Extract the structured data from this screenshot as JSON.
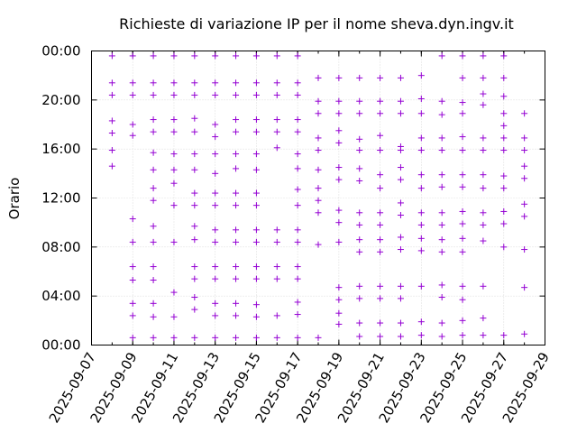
{
  "chart_data": {
    "type": "scatter",
    "title": "Richieste di variazione IP per il nome sheva.dyn.ingv.it",
    "xlabel": "",
    "ylabel": "Orario",
    "x_ticks": [
      "2025-09-07",
      "2025-09-09",
      "2025-09-11",
      "2025-09-13",
      "2025-09-15",
      "2025-09-17",
      "2025-09-19",
      "2025-09-21",
      "2025-09-23",
      "2025-09-25",
      "2025-09-27",
      "2025-09-29"
    ],
    "y_ticks": [
      "00:00",
      "04:00",
      "08:00",
      "12:00",
      "16:00",
      "20:00",
      "00:00"
    ],
    "xlim": [
      "2025-09-07",
      "2025-09-29"
    ],
    "ylim": [
      0,
      24
    ],
    "grid": true,
    "marker": "+",
    "color": "#9400d3",
    "series": [
      {
        "points": [
          {
            "date": "2025-09-08",
            "hours": [
              23.6,
              21.4,
              20.4,
              18.3,
              17.3,
              15.9,
              14.6
            ]
          },
          {
            "date": "2025-09-09",
            "hours": [
              23.6,
              21.4,
              20.4,
              18.0,
              17.1,
              10.3,
              8.4,
              6.4,
              5.3,
              3.4,
              2.4,
              0.6
            ]
          },
          {
            "date": "2025-09-10",
            "hours": [
              23.6,
              21.4,
              20.4,
              18.4,
              17.4,
              15.7,
              14.3,
              12.8,
              11.8,
              9.7,
              8.4,
              6.4,
              5.3,
              3.4,
              2.3,
              0.6
            ]
          },
          {
            "date": "2025-09-11",
            "hours": [
              23.6,
              21.4,
              20.4,
              18.4,
              17.4,
              15.6,
              14.3,
              13.2,
              11.4,
              8.4,
              4.3,
              2.3,
              0.6
            ]
          },
          {
            "date": "2025-09-12",
            "hours": [
              23.6,
              21.4,
              20.4,
              18.5,
              17.4,
              15.6,
              14.3,
              12.4,
              11.4,
              9.7,
              8.6,
              6.4,
              5.4,
              3.9,
              2.9,
              0.6
            ]
          },
          {
            "date": "2025-09-13",
            "hours": [
              23.6,
              21.4,
              20.4,
              18.0,
              17.0,
              15.6,
              14.0,
              12.4,
              11.4,
              9.4,
              8.4,
              6.4,
              5.4,
              3.4,
              2.4,
              0.6
            ]
          },
          {
            "date": "2025-09-14",
            "hours": [
              23.6,
              21.4,
              20.4,
              18.4,
              17.4,
              15.6,
              14.4,
              12.4,
              11.4,
              9.4,
              8.4,
              6.4,
              5.4,
              3.4,
              2.4,
              0.6
            ]
          },
          {
            "date": "2025-09-15",
            "hours": [
              23.6,
              21.4,
              20.4,
              18.4,
              17.4,
              15.6,
              14.3,
              12.4,
              11.4,
              9.4,
              8.4,
              6.4,
              5.4,
              3.3,
              2.3,
              0.6
            ]
          },
          {
            "date": "2025-09-16",
            "hours": [
              23.6,
              21.4,
              20.4,
              18.4,
              17.4,
              16.1,
              9.4,
              8.4,
              6.4,
              5.4,
              2.4,
              0.6
            ]
          },
          {
            "date": "2025-09-17",
            "hours": [
              23.6,
              21.4,
              20.4,
              18.4,
              17.4,
              15.6,
              14.4,
              12.7,
              11.4,
              9.4,
              8.4,
              6.4,
              5.4,
              3.5,
              2.5,
              0.6
            ]
          },
          {
            "date": "2025-09-18",
            "hours": [
              21.8,
              19.9,
              18.9,
              16.9,
              15.9,
              14.3,
              12.8,
              11.8,
              10.8,
              8.2,
              0.6
            ]
          },
          {
            "date": "2025-09-19",
            "hours": [
              21.8,
              19.9,
              18.9,
              17.5,
              16.5,
              14.5,
              13.5,
              11.0,
              10.0,
              8.4,
              4.7,
              3.7,
              2.6,
              1.7
            ]
          },
          {
            "date": "2025-09-20",
            "hours": [
              21.8,
              19.9,
              18.9,
              16.8,
              15.9,
              14.4,
              13.4,
              10.8,
              9.8,
              8.6,
              7.6,
              4.8,
              3.8,
              1.8,
              0.7
            ]
          },
          {
            "date": "2025-09-21",
            "hours": [
              21.8,
              19.9,
              18.9,
              17.1,
              15.9,
              13.9,
              12.8,
              10.8,
              9.8,
              8.6,
              7.6,
              4.8,
              3.8,
              1.8,
              0.7
            ]
          },
          {
            "date": "2025-09-22",
            "hours": [
              21.8,
              19.9,
              18.9,
              16.2,
              15.9,
              14.5,
              13.5,
              11.6,
              10.6,
              8.8,
              7.8,
              4.8,
              3.8,
              1.8,
              0.7
            ]
          },
          {
            "date": "2025-09-23",
            "hours": [
              22.0,
              20.1,
              18.9,
              16.9,
              15.9,
              13.9,
              12.8,
              10.8,
              9.8,
              8.7,
              7.7,
              4.8,
              1.9,
              0.8
            ]
          },
          {
            "date": "2025-09-24",
            "hours": [
              23.6,
              19.9,
              18.8,
              16.9,
              15.9,
              13.9,
              12.9,
              10.8,
              9.8,
              8.6,
              7.6,
              4.9,
              3.9,
              1.8,
              0.7
            ]
          },
          {
            "date": "2025-09-25",
            "hours": [
              23.6,
              21.8,
              19.8,
              18.9,
              17.0,
              15.9,
              13.9,
              12.9,
              10.9,
              9.9,
              8.7,
              7.6,
              4.8,
              3.7,
              2.0,
              0.8
            ]
          },
          {
            "date": "2025-09-26",
            "hours": [
              23.6,
              21.8,
              20.5,
              19.6,
              16.9,
              15.9,
              13.9,
              12.8,
              10.8,
              9.8,
              8.5,
              4.8,
              2.2,
              0.8
            ]
          },
          {
            "date": "2025-09-27",
            "hours": [
              23.6,
              21.8,
              20.3,
              18.9,
              17.9,
              16.9,
              15.9,
              13.8,
              12.8,
              10.9,
              9.9,
              8.0,
              0.8
            ]
          },
          {
            "date": "2025-09-28",
            "hours": [
              18.9,
              16.9,
              15.9,
              14.6,
              13.6,
              11.5,
              10.5,
              7.8,
              4.7,
              0.9
            ]
          }
        ]
      }
    ]
  }
}
